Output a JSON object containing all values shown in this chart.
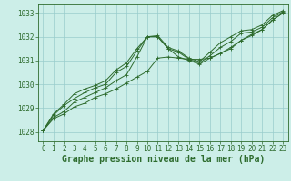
{
  "background_color": "#cceee8",
  "grid_color": "#99cccc",
  "line_color": "#2d6b2d",
  "title": "Graphe pression niveau de la mer (hPa)",
  "xlim": [
    -0.5,
    23.5
  ],
  "ylim": [
    1027.6,
    1033.4
  ],
  "yticks": [
    1028,
    1029,
    1030,
    1031,
    1032,
    1033
  ],
  "xticks": [
    0,
    1,
    2,
    3,
    4,
    5,
    6,
    7,
    8,
    9,
    10,
    11,
    12,
    13,
    14,
    15,
    16,
    17,
    18,
    19,
    20,
    21,
    22,
    23
  ],
  "series": [
    [
      1028.05,
      1028.55,
      1028.75,
      1029.05,
      1029.2,
      1029.45,
      1029.6,
      1029.8,
      1030.05,
      1030.3,
      1030.55,
      1031.1,
      1031.15,
      1031.1,
      1031.05,
      1031.05,
      1031.1,
      1031.3,
      1031.55,
      1031.85,
      1032.05,
      1032.3,
      1032.7,
      1033.0
    ],
    [
      1028.05,
      1028.6,
      1028.85,
      1029.25,
      1029.45,
      1029.65,
      1029.85,
      1030.15,
      1030.4,
      1031.15,
      1032.0,
      1032.0,
      1031.5,
      1031.15,
      1031.0,
      1030.85,
      1031.1,
      1031.3,
      1031.5,
      1031.85,
      1032.1,
      1032.3,
      1032.7,
      1033.0
    ],
    [
      1028.05,
      1028.7,
      1029.1,
      1029.4,
      1029.65,
      1029.85,
      1030.0,
      1030.5,
      1030.75,
      1031.4,
      1032.0,
      1032.0,
      1031.5,
      1031.35,
      1031.05,
      1030.9,
      1031.2,
      1031.55,
      1031.8,
      1032.15,
      1032.2,
      1032.4,
      1032.8,
      1033.05
    ],
    [
      1028.05,
      1028.75,
      1029.15,
      1029.6,
      1029.8,
      1029.95,
      1030.15,
      1030.6,
      1030.9,
      1031.5,
      1032.0,
      1032.05,
      1031.55,
      1031.4,
      1031.1,
      1030.95,
      1031.35,
      1031.75,
      1032.0,
      1032.25,
      1032.3,
      1032.5,
      1032.9,
      1033.1
    ]
  ],
  "marker": "+",
  "markersize": 3,
  "linewidth": 0.7,
  "title_fontsize": 7,
  "tick_fontsize": 5.5
}
